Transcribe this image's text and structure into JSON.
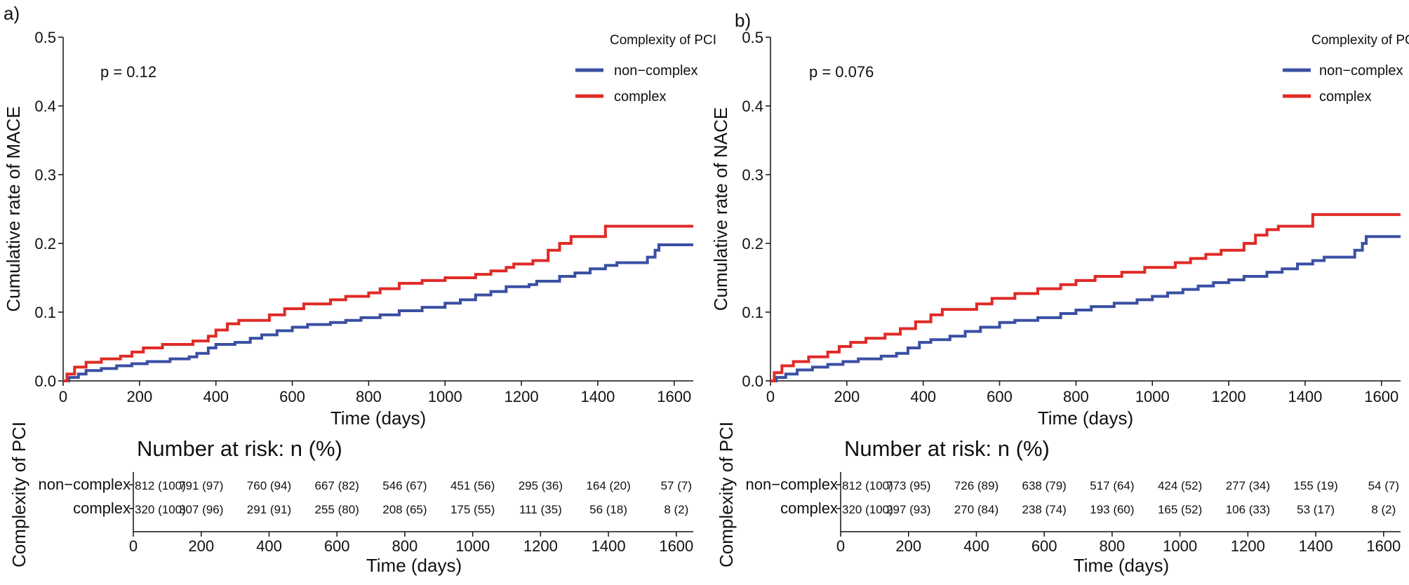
{
  "chart_data": [
    {
      "panel_label": "a)",
      "type": "line",
      "title": "",
      "xlabel": "Time (days)",
      "ylabel": "Cumulative rate of MACE",
      "xlim": [
        0,
        1650
      ],
      "ylim": [
        0,
        0.5
      ],
      "xticks": [
        "0",
        "200",
        "400",
        "600",
        "800",
        "1000",
        "1200",
        "1400",
        "1600"
      ],
      "yticks": [
        "0.0",
        "0.1",
        "0.2",
        "0.3",
        "0.4",
        "0.5"
      ],
      "pvalue": "p = 0.12",
      "legend_title": "Complexity of PCI",
      "legend_position": "top-right",
      "series": [
        {
          "name": "non−complex",
          "color": "#3a4fa3",
          "x": [
            0,
            15,
            40,
            60,
            100,
            140,
            180,
            220,
            280,
            330,
            350,
            380,
            400,
            450,
            490,
            520,
            560,
            600,
            640,
            700,
            740,
            780,
            830,
            880,
            940,
            1000,
            1040,
            1080,
            1120,
            1160,
            1220,
            1240,
            1300,
            1340,
            1380,
            1420,
            1450,
            1530,
            1550,
            1560,
            1650
          ],
          "y": [
            0,
            0.005,
            0.01,
            0.015,
            0.018,
            0.022,
            0.025,
            0.028,
            0.032,
            0.035,
            0.04,
            0.048,
            0.053,
            0.056,
            0.062,
            0.067,
            0.073,
            0.078,
            0.082,
            0.085,
            0.088,
            0.092,
            0.096,
            0.102,
            0.107,
            0.113,
            0.118,
            0.125,
            0.13,
            0.137,
            0.14,
            0.145,
            0.152,
            0.157,
            0.163,
            0.168,
            0.172,
            0.18,
            0.19,
            0.198,
            0.198
          ]
        },
        {
          "name": "complex",
          "color": "#e02a26",
          "x": [
            0,
            10,
            30,
            60,
            100,
            150,
            180,
            210,
            260,
            340,
            380,
            400,
            430,
            460,
            540,
            580,
            630,
            700,
            740,
            800,
            830,
            880,
            940,
            1000,
            1080,
            1120,
            1160,
            1180,
            1230,
            1270,
            1300,
            1330,
            1420,
            1650
          ],
          "y": [
            0,
            0.01,
            0.02,
            0.027,
            0.032,
            0.036,
            0.042,
            0.048,
            0.053,
            0.058,
            0.065,
            0.074,
            0.083,
            0.088,
            0.096,
            0.105,
            0.112,
            0.118,
            0.123,
            0.128,
            0.134,
            0.142,
            0.146,
            0.15,
            0.155,
            0.16,
            0.165,
            0.17,
            0.175,
            0.19,
            0.2,
            0.21,
            0.225,
            0.225
          ]
        }
      ],
      "risk_table": {
        "title": "Number at risk: n (%)",
        "ylabel": "Complexity of PCI",
        "xlabel": "Time (days)",
        "xticks": [
          "0",
          "200",
          "400",
          "600",
          "800",
          "1000",
          "1200",
          "1400",
          "1600"
        ],
        "rows": [
          {
            "label": "non−complex",
            "values": [
              "812 (100)",
              "791 (97)",
              "760 (94)",
              "667 (82)",
              "546 (67)",
              "451 (56)",
              "295 (36)",
              "164 (20)",
              "57 (7)"
            ]
          },
          {
            "label": "complex",
            "values": [
              "320 (100)",
              "307 (96)",
              "291 (91)",
              "255 (80)",
              "208 (65)",
              "175 (55)",
              "111 (35)",
              "56 (18)",
              "8 (2)"
            ]
          }
        ]
      }
    },
    {
      "panel_label": "b)",
      "type": "line",
      "title": "",
      "xlabel": "Time (days)",
      "ylabel": "Cumulative rate of NACE",
      "xlim": [
        0,
        1650
      ],
      "ylim": [
        0,
        0.5
      ],
      "xticks": [
        "0",
        "200",
        "400",
        "600",
        "800",
        "1000",
        "1200",
        "1400",
        "1600"
      ],
      "yticks": [
        "0.0",
        "0.1",
        "0.2",
        "0.3",
        "0.4",
        "0.5"
      ],
      "pvalue": "p = 0.076",
      "legend_title": "Complexity of PCI",
      "legend_position": "top-right",
      "series": [
        {
          "name": "non−complex",
          "color": "#3a4fa3",
          "x": [
            0,
            15,
            40,
            70,
            110,
            150,
            190,
            230,
            290,
            330,
            360,
            390,
            420,
            470,
            510,
            550,
            600,
            640,
            700,
            760,
            800,
            840,
            900,
            960,
            1000,
            1040,
            1080,
            1120,
            1160,
            1200,
            1240,
            1300,
            1340,
            1380,
            1420,
            1450,
            1530,
            1550,
            1560,
            1650
          ],
          "y": [
            0,
            0.005,
            0.01,
            0.016,
            0.02,
            0.024,
            0.028,
            0.032,
            0.036,
            0.04,
            0.048,
            0.056,
            0.06,
            0.065,
            0.072,
            0.078,
            0.085,
            0.088,
            0.092,
            0.098,
            0.103,
            0.108,
            0.113,
            0.118,
            0.123,
            0.128,
            0.133,
            0.138,
            0.143,
            0.147,
            0.152,
            0.158,
            0.163,
            0.17,
            0.175,
            0.18,
            0.19,
            0.2,
            0.21,
            0.21
          ]
        },
        {
          "name": "complex",
          "color": "#e02a26",
          "x": [
            0,
            10,
            30,
            60,
            100,
            150,
            180,
            210,
            250,
            300,
            340,
            380,
            420,
            450,
            540,
            580,
            640,
            700,
            760,
            800,
            850,
            920,
            980,
            1060,
            1100,
            1140,
            1180,
            1240,
            1270,
            1300,
            1330,
            1420,
            1650
          ],
          "y": [
            0,
            0.012,
            0.022,
            0.028,
            0.035,
            0.042,
            0.05,
            0.056,
            0.062,
            0.068,
            0.076,
            0.086,
            0.096,
            0.104,
            0.112,
            0.12,
            0.127,
            0.134,
            0.14,
            0.146,
            0.152,
            0.158,
            0.165,
            0.172,
            0.178,
            0.184,
            0.19,
            0.2,
            0.212,
            0.22,
            0.225,
            0.242,
            0.242
          ]
        }
      ],
      "risk_table": {
        "title": "Number at risk: n (%)",
        "ylabel": "Complexity of PCI",
        "xlabel": "Time (days)",
        "xticks": [
          "0",
          "200",
          "400",
          "600",
          "800",
          "1000",
          "1200",
          "1400",
          "1600"
        ],
        "rows": [
          {
            "label": "non−complex",
            "values": [
              "812 (100)",
              "773 (95)",
              "726 (89)",
              "638 (79)",
              "517 (64)",
              "424 (52)",
              "277 (34)",
              "155 (19)",
              "54 (7)"
            ]
          },
          {
            "label": "complex",
            "values": [
              "320 (100)",
              "297 (93)",
              "270 (84)",
              "238 (74)",
              "193 (60)",
              "165 (52)",
              "106 (33)",
              "53 (17)",
              "8 (2)"
            ]
          }
        ]
      }
    }
  ]
}
